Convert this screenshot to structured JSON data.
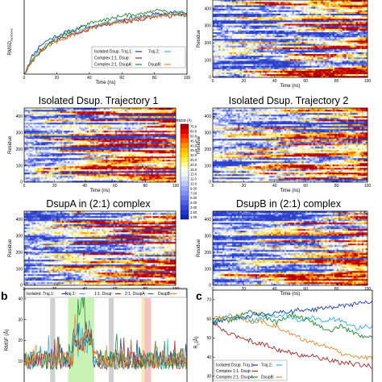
{
  "chart_data": [
    {
      "panel": "a-top-left",
      "type": "line",
      "ylabel_main": "RMSD",
      "ylabel_sub": "backbone",
      "xlabel": "Time (ns)",
      "xticks": [
        0,
        20,
        40,
        60,
        80,
        100
      ],
      "xlim": [
        0,
        100
      ],
      "legend_rows": [
        {
          "left": "Isolated Dsup. Traj.1:",
          "right": "Traj.2:"
        },
        {
          "left": "Complex 1:1. Dsup:",
          "right": ""
        },
        {
          "left": "Complex 2:1. DsupA:",
          "right": "DsupB:"
        }
      ],
      "series": [
        {
          "color": "#1a3db8",
          "values": [
            0,
            10,
            16,
            19,
            21,
            23,
            24,
            26,
            26,
            27,
            28,
            29,
            30,
            31,
            31,
            32,
            33,
            33,
            34,
            34,
            33
          ]
        },
        {
          "color": "#29b3e8",
          "values": [
            0,
            9,
            14,
            17,
            19,
            21,
            23,
            24,
            25,
            27,
            28,
            29,
            29,
            30,
            31,
            31,
            32,
            33,
            33,
            34,
            34
          ]
        },
        {
          "color": "#b02222",
          "values": [
            0,
            8,
            13,
            16,
            19,
            20,
            22,
            23,
            25,
            26,
            27,
            28,
            29,
            29,
            30,
            31,
            31,
            32,
            32,
            33,
            33
          ]
        },
        {
          "color": "#1f8a2e",
          "values": [
            0,
            7,
            12,
            16,
            20,
            22,
            24,
            26,
            28,
            29,
            30,
            31,
            32,
            33,
            33,
            34,
            35,
            35,
            34,
            33,
            32
          ]
        },
        {
          "color": "#e58b2a",
          "values": [
            0,
            8,
            13,
            16,
            18,
            20,
            22,
            24,
            25,
            26,
            28,
            28,
            29,
            30,
            31,
            31,
            32,
            32,
            33,
            33,
            33
          ]
        }
      ]
    },
    {
      "panel": "a-heatmaps",
      "type": "heatmap",
      "titles": [
        "Isolated Dsup. Trajectory 1",
        "Isolated Dsup. Trajectory 2",
        "DsupA in (2:1) complex",
        "DsupB in (2:1) complex"
      ],
      "ylabel": "Residue",
      "xlabel": "Time (ns)",
      "xticks": [
        0,
        20,
        40,
        60,
        80,
        100
      ],
      "yticks": [
        0,
        100,
        200,
        300,
        400
      ],
      "colorbar_title": "RMSD (Å)",
      "colorbar_ticks": [
        "70.0",
        "60.0",
        "50.0",
        "45.0",
        "40.0",
        "35.0",
        "30.0",
        "25.0",
        "20.0",
        "15.0",
        "13.0",
        "11.0",
        "10.0",
        "9.00",
        "7.00",
        "5.00",
        "4.00",
        "3.00",
        "2.50",
        "1.00"
      ],
      "colorbar_colors": [
        "#b00000",
        "#e00000",
        "#ff2200",
        "#ff5a00",
        "#ff9000",
        "#ffbb00",
        "#ffdd00",
        "#ffee44",
        "#fff8a0",
        "#ffffe0",
        "#f0f4ff",
        "#d8e0ff",
        "#b8c8ff",
        "#98a8ff",
        "#7d90fb",
        "#6677f0",
        "#5060e6",
        "#3848da",
        "#2038cc",
        "#1028b8"
      ]
    },
    {
      "panel": "b",
      "type": "line",
      "ylabel": "RMSF (Å)",
      "legend_items": [
        "Isolated. Traj.1:",
        "Traj.2:",
        "1:1. Dsup:",
        "2:1. DsupA:",
        "DsupB:"
      ],
      "series_colors": [
        "#1a3db8",
        "#29b3e8",
        "#b02222",
        "#1f8a2e",
        "#e58b2a"
      ],
      "yticks": [
        10,
        20,
        30,
        40
      ],
      "ylim": [
        0,
        45
      ],
      "shaded_regions": [
        {
          "from": 0.16,
          "to": 0.19,
          "color": "#c8c8c8"
        },
        {
          "from": 0.27,
          "to": 0.43,
          "color": "#bff0a8"
        },
        {
          "from": 0.52,
          "to": 0.55,
          "color": "#c8c8c8"
        },
        {
          "from": 0.72,
          "to": 0.74,
          "color": "#f2e7a8"
        },
        {
          "from": 0.74,
          "to": 0.78,
          "color": "#f5b8b8"
        }
      ]
    },
    {
      "panel": "c",
      "type": "line",
      "ylabel_main": "R",
      "ylabel_sub": "g",
      "ylabel_unit": "(Å)",
      "yticks": [
        30,
        40,
        50,
        60,
        70
      ],
      "ylim": [
        27,
        75
      ],
      "legend_rows": [
        {
          "left": "Isolated Dsup. Traj.1:",
          "right": "Traj.2:"
        },
        {
          "left": "Complex 1:1. Dsup:",
          "right": ""
        },
        {
          "left": "Complex 2:1. DsupA:",
          "right": "DsupB:"
        }
      ],
      "series": [
        {
          "color": "#1a3db8",
          "values": [
            58,
            59,
            60,
            61,
            60,
            62,
            63,
            62,
            63,
            64,
            64,
            65,
            64,
            65,
            66,
            66,
            67,
            67,
            68,
            69,
            69
          ]
        },
        {
          "color": "#29b3e8",
          "values": [
            58,
            60,
            62,
            60,
            61,
            59,
            60,
            62,
            61,
            63,
            60,
            59,
            61,
            60,
            58,
            60,
            59,
            57,
            55,
            56,
            55
          ]
        },
        {
          "color": "#b02222",
          "values": [
            58,
            55,
            52,
            51,
            50,
            48,
            47,
            46,
            44,
            43,
            42,
            41,
            41,
            40,
            39,
            38,
            37,
            37,
            36,
            36,
            35
          ]
        },
        {
          "color": "#1f8a2e",
          "values": [
            58,
            60,
            59,
            61,
            63,
            64,
            62,
            60,
            58,
            60,
            62,
            61,
            59,
            57,
            55,
            54,
            56,
            54,
            52,
            50,
            51
          ]
        },
        {
          "color": "#e58b2a",
          "values": [
            60,
            61,
            60,
            62,
            60,
            58,
            59,
            57,
            56,
            54,
            52,
            50,
            48,
            47,
            46,
            44,
            42,
            41,
            40,
            40,
            39
          ]
        }
      ]
    }
  ],
  "panel_letters": {
    "b": "b",
    "c": "c"
  }
}
